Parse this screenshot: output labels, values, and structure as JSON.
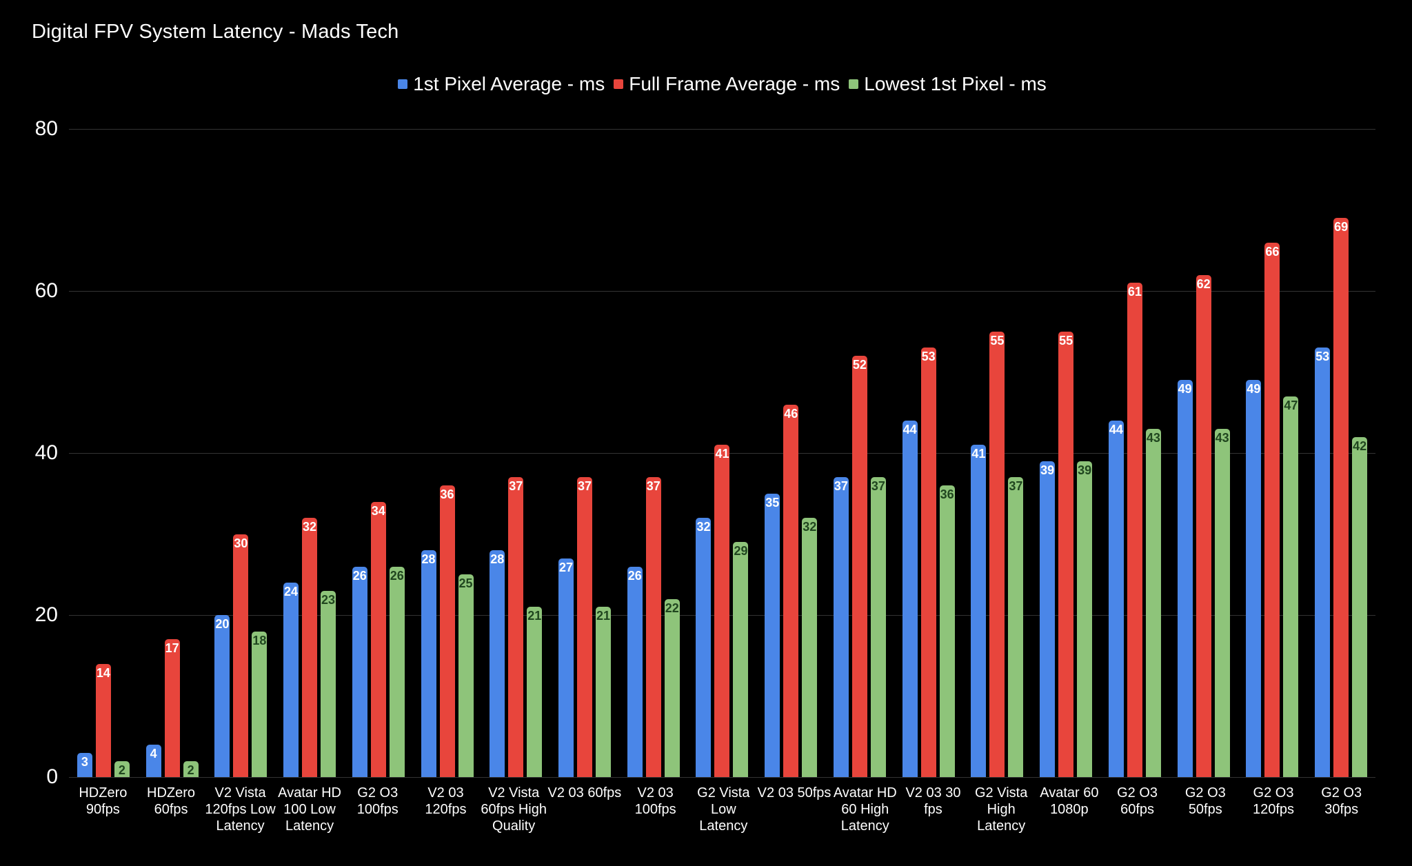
{
  "title": "Digital FPV System Latency - Mads Tech",
  "colors": {
    "background": "#000000",
    "text": "#ffffff",
    "grid": "#343434",
    "series_blue": "#4a86e8",
    "series_red": "#e8453c",
    "series_green": "#8ec47a",
    "green_value_label": "#20461f",
    "light_value_label": "#ffffff"
  },
  "y_axis": {
    "ticks": [
      80,
      60,
      40,
      20,
      0
    ],
    "min": 0,
    "max": 80
  },
  "chart_data": {
    "type": "bar",
    "title": "Digital FPV System Latency - Mads Tech",
    "xlabel": "",
    "ylabel": "",
    "ylim": [
      0,
      80
    ],
    "grid": true,
    "legend_position": "top-center",
    "categories": [
      "HDZero 90fps",
      "HDZero 60fps",
      "V2 Vista 120fps Low Latency",
      "Avatar HD 100 Low Latency",
      "G2 O3 100fps",
      "V2 03 120fps",
      "V2 Vista 60fps High Quality",
      "V2 03 60fps",
      "V2 03 100fps",
      "G2 Vista Low Latency",
      "V2 03 50fps",
      "Avatar HD 60 High Latency",
      "V2 03 30 fps",
      "G2 Vista High Latency",
      "Avatar 60 1080p",
      "G2 O3 60fps",
      "G2 O3 50fps",
      "G2 O3 120fps",
      "G2 O3 30fps"
    ],
    "category_lines": [
      [
        "HDZero",
        "90fps"
      ],
      [
        "HDZero",
        "60fps"
      ],
      [
        "V2 Vista",
        "120fps Low",
        "Latency"
      ],
      [
        "Avatar HD",
        "100 Low",
        "Latency"
      ],
      [
        "G2 O3",
        "100fps"
      ],
      [
        "V2 03",
        "120fps"
      ],
      [
        "V2 Vista",
        "60fps High",
        "Quality"
      ],
      [
        "V2 03 60fps"
      ],
      [
        "V2 03",
        "100fps"
      ],
      [
        "G2 Vista",
        "Low",
        "Latency"
      ],
      [
        "V2 03 50fps"
      ],
      [
        "Avatar HD",
        "60 High",
        "Latency"
      ],
      [
        "V2 03 30",
        "fps"
      ],
      [
        "G2 Vista",
        "High",
        "Latency"
      ],
      [
        "Avatar 60",
        "1080p"
      ],
      [
        "G2 O3",
        "60fps"
      ],
      [
        "G2 O3",
        "50fps"
      ],
      [
        "G2 O3",
        "120fps"
      ],
      [
        "G2 O3",
        "30fps"
      ]
    ],
    "series": [
      {
        "name": "1st Pixel Average - ms",
        "color": "#4a86e8",
        "label_color": "#ffffff",
        "values": [
          3,
          4,
          20,
          24,
          26,
          28,
          28,
          27,
          26,
          32,
          35,
          37,
          44,
          41,
          39,
          44,
          49,
          49,
          53
        ]
      },
      {
        "name": "Full Frame Average - ms",
        "color": "#e8453c",
        "label_color": "#ffffff",
        "values": [
          14,
          17,
          30,
          32,
          34,
          36,
          37,
          37,
          37,
          41,
          46,
          52,
          53,
          55,
          55,
          61,
          62,
          66,
          69
        ]
      },
      {
        "name": "Lowest 1st Pixel - ms",
        "color": "#8ec47a",
        "label_color": "#20461f",
        "values": [
          2,
          2,
          18,
          23,
          26,
          25,
          21,
          21,
          22,
          29,
          32,
          37,
          36,
          37,
          39,
          43,
          43,
          47,
          42
        ]
      }
    ]
  }
}
